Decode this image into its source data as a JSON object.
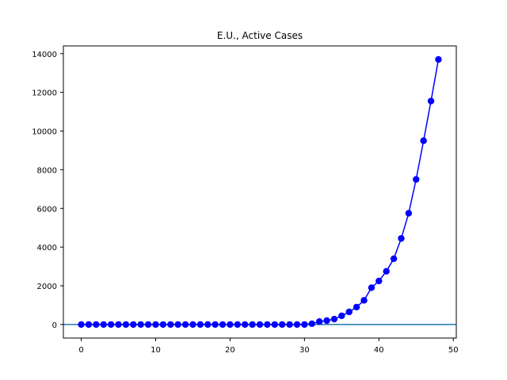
{
  "chart_data": {
    "type": "line",
    "title": "E.U., Active Cases",
    "xlabel": "",
    "ylabel": "",
    "xlim": [
      -2.4,
      50.4
    ],
    "ylim": [
      -700,
      14400
    ],
    "xticks": [
      0,
      10,
      20,
      30,
      40,
      50
    ],
    "yticks": [
      0,
      2000,
      4000,
      6000,
      8000,
      10000,
      12000,
      14000
    ],
    "grid": false,
    "series": [
      {
        "color": "#0000ff",
        "marker": "circle",
        "x": [
          0,
          1,
          2,
          3,
          4,
          5,
          6,
          7,
          8,
          9,
          10,
          11,
          12,
          13,
          14,
          15,
          16,
          17,
          18,
          19,
          20,
          21,
          22,
          23,
          24,
          25,
          26,
          27,
          28,
          29,
          30,
          31,
          32,
          33,
          34,
          35,
          36,
          37,
          38,
          39,
          40,
          41,
          42,
          43,
          44,
          45,
          46,
          47,
          48
        ],
        "y": [
          0,
          0,
          0,
          0,
          0,
          0,
          0,
          0,
          0,
          0,
          0,
          0,
          0,
          0,
          0,
          0,
          0,
          0,
          0,
          0,
          0,
          0,
          0,
          0,
          0,
          0,
          0,
          0,
          0,
          0,
          0,
          40,
          150,
          200,
          280,
          450,
          650,
          900,
          1250,
          1900,
          2250,
          2750,
          3400,
          4450,
          5750,
          7500,
          9500,
          11550,
          13700
        ]
      }
    ],
    "hline": {
      "y": 0,
      "color": "#1f77b4"
    }
  }
}
